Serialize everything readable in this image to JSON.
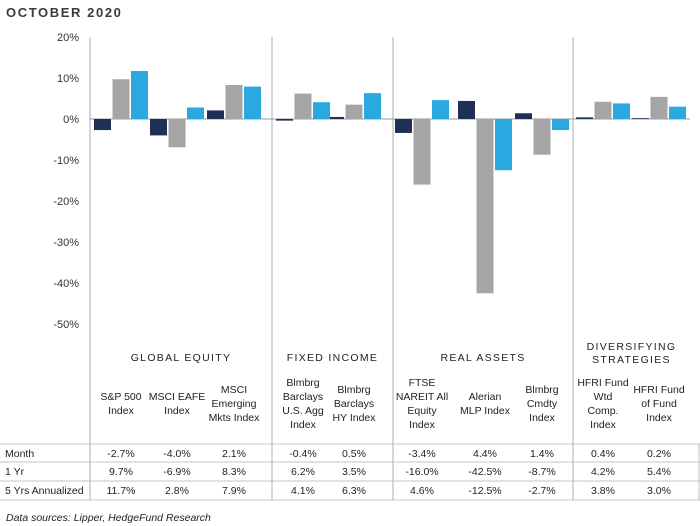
{
  "title": "OCTOBER 2020",
  "source": "Data sources: Lipper, HedgeFund Research",
  "colors": {
    "month": "#1f3056",
    "yr1": "#a5a5a7",
    "yr5": "#2aa8e0",
    "divider": "#9a9a9a"
  },
  "chart_data": {
    "type": "bar",
    "ylim": [
      -50,
      20
    ],
    "yticks": [
      "20%",
      "10%",
      "0%",
      "-10%",
      "-20%",
      "-30%",
      "-40%",
      "-50%"
    ],
    "groups": [
      {
        "label": "GLOBAL EQUITY",
        "count": 3
      },
      {
        "label": "FIXED INCOME",
        "count": 2
      },
      {
        "label": "REAL ASSETS",
        "count": 3
      },
      {
        "label": "DIVERSIFYING|STRATEGIES",
        "count": 2
      }
    ],
    "categories": [
      "S&P 500|Index",
      "MSCI EAFE|Index",
      "MSCI|Emerging|Mkts Index",
      "Blmbrg|Barclays|U.S. Agg|Index",
      "Blmbrg|Barclays|HY Index",
      "FTSE|NAREIT All|Equity|Index",
      "Alerian|MLP Index",
      "Blmbrg|Cmdty|Index",
      "HFRI Fund|Wtd|Comp.|Index",
      "HFRI Fund|of Fund|Index"
    ],
    "series": [
      {
        "name": "Month",
        "values": [
          -2.7,
          -4.0,
          2.1,
          -0.4,
          0.5,
          -3.4,
          4.4,
          1.4,
          0.4,
          0.2
        ],
        "labels": [
          "-2.7%",
          "-4.0%",
          "2.1%",
          "-0.4%",
          "0.5%",
          "-3.4%",
          "4.4%",
          "1.4%",
          "0.4%",
          "0.2%"
        ]
      },
      {
        "name": "1 Yr",
        "values": [
          9.7,
          -6.9,
          8.3,
          6.2,
          3.5,
          -16.0,
          -42.5,
          -8.7,
          4.2,
          5.4
        ],
        "labels": [
          "9.7%",
          "-6.9%",
          "8.3%",
          "6.2%",
          "3.5%",
          "-16.0%",
          "-42.5%",
          "-8.7%",
          "4.2%",
          "5.4%"
        ]
      },
      {
        "name": "5 Yrs Annualized",
        "values": [
          11.7,
          2.8,
          7.9,
          4.1,
          6.3,
          4.6,
          -12.5,
          -2.7,
          3.8,
          3.0
        ],
        "labels": [
          "11.7%",
          "2.8%",
          "7.9%",
          "4.1%",
          "6.3%",
          "4.6%",
          "-12.5%",
          "-2.7%",
          "3.8%",
          "3.0%"
        ]
      }
    ]
  }
}
